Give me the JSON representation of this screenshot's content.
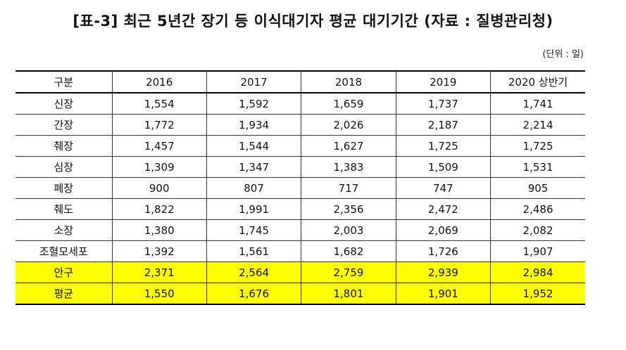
{
  "title": "[표-3] 최근 5년간 장기 등 이식대기자 평균 대기기간 (자료 : 질병관리청)",
  "unit": "(단위 : 일)",
  "table": {
    "headers": [
      "구분",
      "2016",
      "2017",
      "2018",
      "2019",
      "2020 상반기"
    ],
    "rows": [
      [
        "신장",
        "1,554",
        "1,592",
        "1,659",
        "1,737",
        "1,741"
      ],
      [
        "간장",
        "1,772",
        "1,934",
        "2,026",
        "2,187",
        "2,214"
      ],
      [
        "췌장",
        "1,457",
        "1,544",
        "1,627",
        "1,725",
        "1,725"
      ],
      [
        "심장",
        "1,309",
        "1,347",
        "1,383",
        "1,509",
        "1,531"
      ],
      [
        "폐장",
        "900",
        "807",
        "717",
        "747",
        "905"
      ],
      [
        "췌도",
        "1,822",
        "1,991",
        "2,356",
        "2,472",
        "2,486"
      ],
      [
        "소장",
        "1,380",
        "1,745",
        "2,003",
        "2,069",
        "2,082"
      ],
      [
        "조혈모세포",
        "1,392",
        "1,561",
        "1,682",
        "1,726",
        "1,907"
      ],
      [
        "안구",
        "2,371",
        "2,564",
        "2,759",
        "2,939",
        "2,984"
      ],
      [
        "평균",
        "1,550",
        "1,676",
        "1,801",
        "1,901",
        "1,952"
      ]
    ],
    "highlight_rows": [
      8,
      9
    ],
    "highlight_color": "#ffff00"
  }
}
